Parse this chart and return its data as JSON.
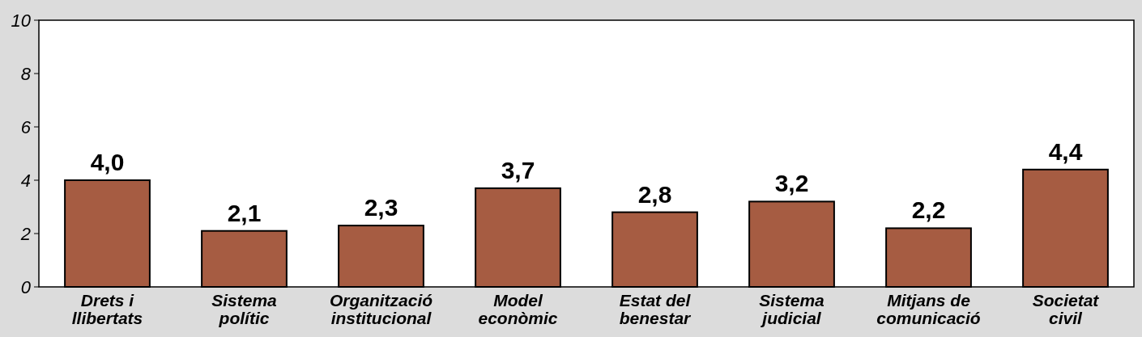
{
  "chart_data": {
    "type": "bar",
    "categories": [
      "Drets i llibertats",
      "Sistema polític",
      "Organització institucional",
      "Model econòmic",
      "Estat del benestar",
      "Sistema judicial",
      "Mitjans de comunicació",
      "Societat civil"
    ],
    "values": [
      4.0,
      2.1,
      2.3,
      3.7,
      2.8,
      3.2,
      2.2,
      4.4
    ],
    "value_labels": [
      "4,0",
      "2,1",
      "2,3",
      "3,7",
      "2,8",
      "3,2",
      "2,2",
      "4,4"
    ],
    "color": "#a65c42",
    "ylim": [
      0,
      10
    ],
    "yticks": [
      0,
      2,
      4,
      6,
      8,
      10
    ],
    "grid": false
  }
}
